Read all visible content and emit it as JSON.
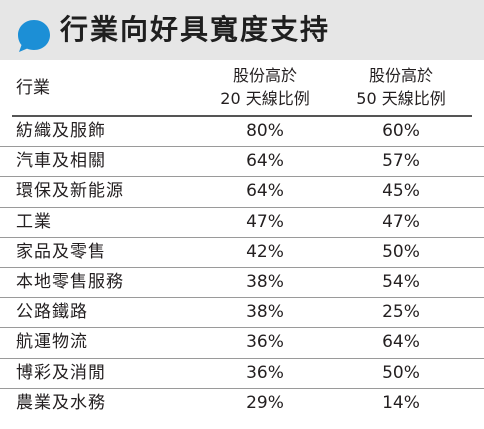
{
  "title": "行業向好具寬度支持",
  "icon": "speech-bubble-icon",
  "colors": {
    "accent": "#1c8fd6",
    "title_bar": "#e6e6e6"
  },
  "header": {
    "industry": "行業",
    "col1_line1": "股份高於",
    "col1_line2": "20 天線比例",
    "col2_line1": "股份高於",
    "col2_line2": "50 天線比例"
  },
  "rows": [
    {
      "name": "紡織及服飾",
      "pct20": "80%",
      "pct50": "60%"
    },
    {
      "name": "汽車及相關",
      "pct20": "64%",
      "pct50": "57%"
    },
    {
      "name": "環保及新能源",
      "pct20": "64%",
      "pct50": "45%"
    },
    {
      "name": "工業",
      "pct20": "47%",
      "pct50": "47%"
    },
    {
      "name": "家品及零售",
      "pct20": "42%",
      "pct50": "50%"
    },
    {
      "name": "本地零售服務",
      "pct20": "38%",
      "pct50": "54%"
    },
    {
      "name": "公路鐵路",
      "pct20": "38%",
      "pct50": "25%"
    },
    {
      "name": "航運物流",
      "pct20": "36%",
      "pct50": "64%"
    },
    {
      "name": "博彩及消閒",
      "pct20": "36%",
      "pct50": "50%"
    },
    {
      "name": "農業及水務",
      "pct20": "29%",
      "pct50": "14%"
    }
  ]
}
